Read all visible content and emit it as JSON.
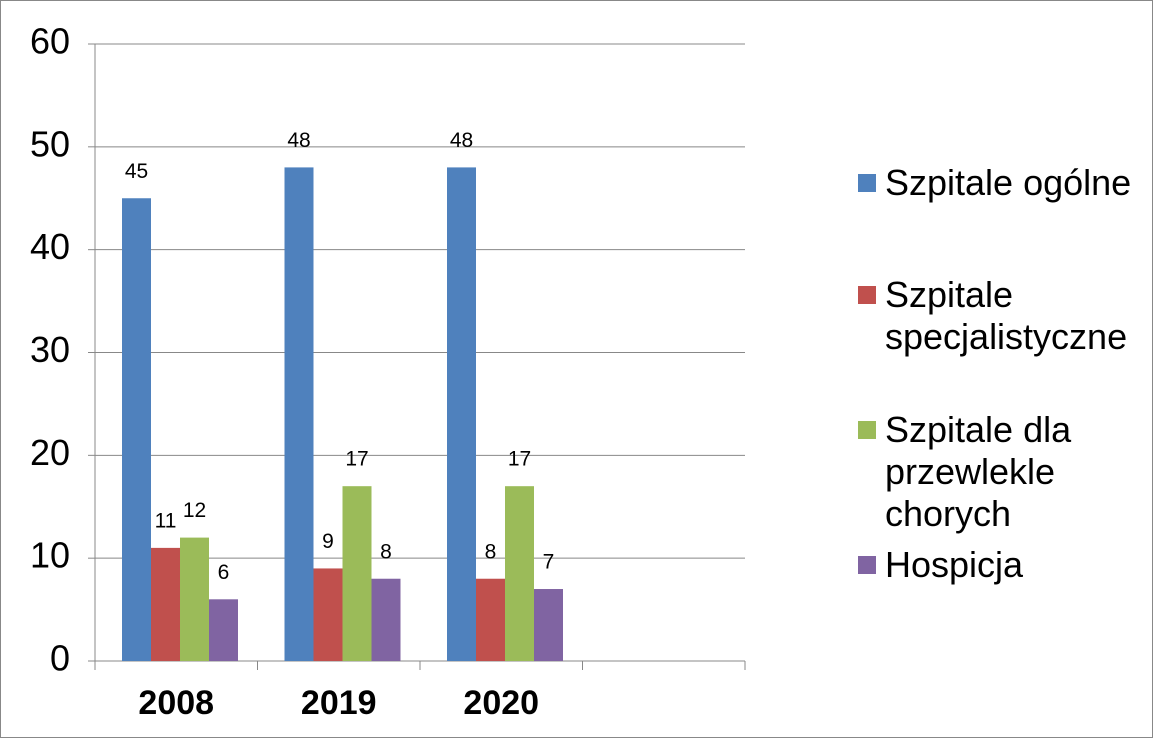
{
  "chart_data": {
    "type": "bar",
    "categories": [
      "2008",
      "2019",
      "2020",
      null
    ],
    "series": [
      {
        "name": "Szpitale ogólne",
        "color": "#4f81bd",
        "values": [
          45,
          48,
          48,
          null
        ]
      },
      {
        "name": "Szpitale specjalistyczne",
        "color": "#c0504d",
        "values": [
          11,
          9,
          8,
          null
        ]
      },
      {
        "name": "Szpitale dla przewlekle chorych",
        "color": "#9bbb59",
        "values": [
          12,
          17,
          17,
          null
        ]
      },
      {
        "name": "Hospicja",
        "color": "#8064a2",
        "values": [
          6,
          8,
          7,
          null
        ]
      }
    ],
    "ylim": [
      0,
      60
    ],
    "yticks": [
      0,
      10,
      20,
      30,
      40,
      50,
      60
    ],
    "grid": true,
    "legend": "right"
  }
}
